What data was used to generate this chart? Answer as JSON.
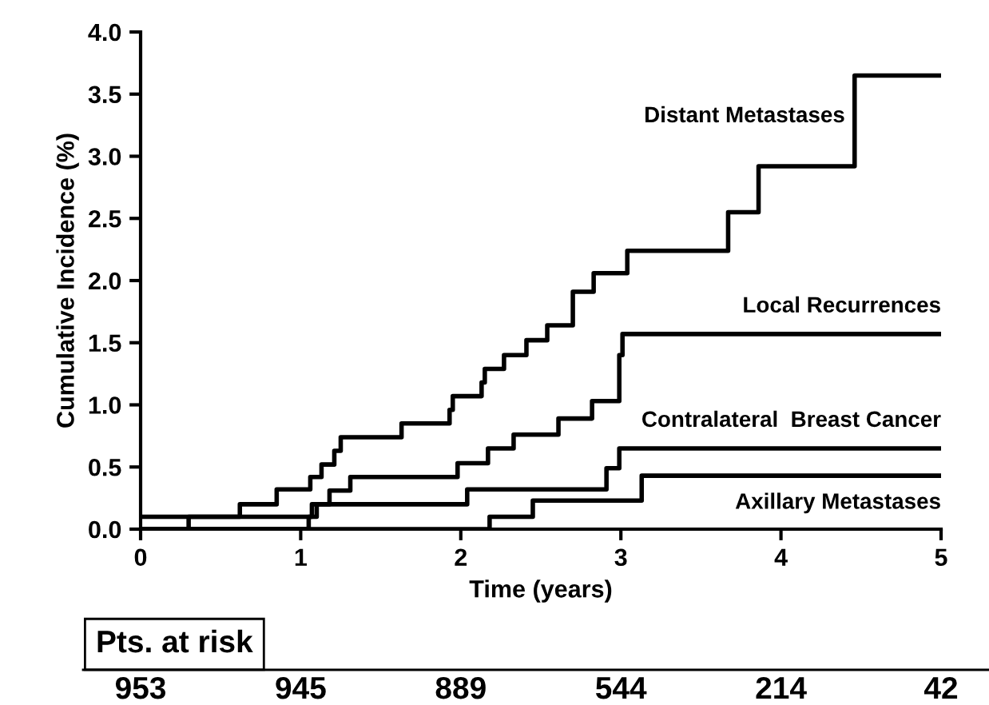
{
  "chart_data": {
    "type": "step",
    "xlabel": "Time (years)",
    "ylabel": "Cumulative Incidence (%)",
    "xlim": [
      0,
      5
    ],
    "ylim": [
      0,
      4
    ],
    "xticks": [
      0,
      1,
      2,
      3,
      4,
      5
    ],
    "yticks": [
      {
        "value": 0,
        "label": "0.0"
      },
      {
        "value": 0.5,
        "label": "0.5"
      },
      {
        "value": 1,
        "label": "1.0"
      },
      {
        "value": 1.5,
        "label": "1.5"
      },
      {
        "value": 2,
        "label": "2.0"
      },
      {
        "value": 2.5,
        "label": "2.5"
      },
      {
        "value": 3,
        "label": "3.0"
      },
      {
        "value": 3.5,
        "label": "3.5"
      },
      {
        "value": 4,
        "label": "4.0"
      }
    ],
    "grid": false,
    "legend": false,
    "line_style": "solid",
    "marker": "none",
    "series": [
      {
        "name": "Distant Metastases",
        "color": "#000000",
        "x": [
          0,
          0.62,
          0.85,
          1.06,
          1.13,
          1.21,
          1.25,
          1.63,
          1.93,
          1.95,
          2.13,
          2.15,
          2.27,
          2.41,
          2.54,
          2.7,
          2.83,
          3.04,
          3.67,
          3.86,
          4.46,
          5
        ],
        "values": [
          0.1,
          0.2,
          0.32,
          0.42,
          0.52,
          0.63,
          0.74,
          0.85,
          0.96,
          1.07,
          1.18,
          1.29,
          1.4,
          1.52,
          1.64,
          1.91,
          2.06,
          2.24,
          2.55,
          2.92,
          3.65,
          3.65
        ]
      },
      {
        "name": "Local Recurrences",
        "color": "#000000",
        "x": [
          0,
          0.3,
          1.07,
          1.18,
          1.31,
          1.98,
          2.17,
          2.33,
          2.61,
          2.82,
          2.99,
          3.01,
          5
        ],
        "values": [
          0,
          0.1,
          0.2,
          0.31,
          0.42,
          0.53,
          0.65,
          0.76,
          0.89,
          1.03,
          1.4,
          1.57,
          1.57
        ]
      },
      {
        "name": "Contralateral  Breast Cancer",
        "color": "#000000",
        "x": [
          0,
          1.05,
          1.1,
          2.04,
          2.91,
          2.99,
          5
        ],
        "values": [
          0,
          0.1,
          0.2,
          0.32,
          0.49,
          0.65,
          0.65
        ]
      },
      {
        "name": "Axillary Metastases",
        "color": "#000000",
        "x": [
          0,
          2.18,
          2.45,
          3.13,
          5
        ],
        "values": [
          0,
          0.1,
          0.23,
          0.43,
          0.43
        ]
      }
    ],
    "annotations": [
      "Pts. at risk",
      "953",
      "945",
      "889",
      "544",
      "214",
      "42"
    ]
  }
}
